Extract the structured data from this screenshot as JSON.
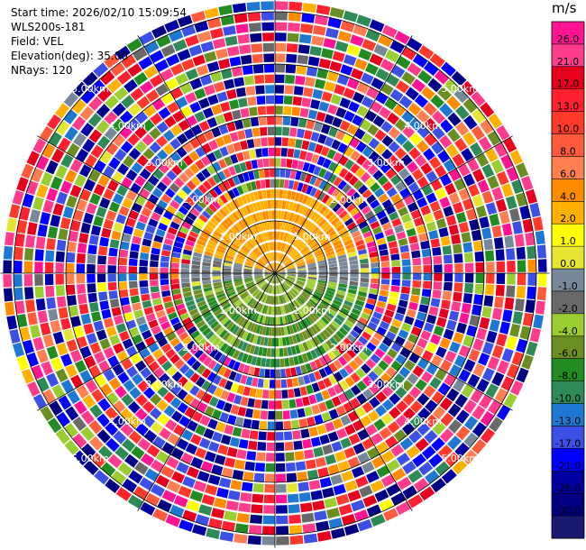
{
  "header": {
    "start_time": "Start time: 2026/02/10 15:09:54",
    "instrument": "WLS200s-181",
    "field": "Field: VEL",
    "elevation": "Elevation(deg): 35.00",
    "nrays": "NRays: 120"
  },
  "chart_data": {
    "type": "heatmap",
    "projection": "polar (PPI)",
    "range_rings_km": [
      1.0,
      2.0,
      3.0,
      4.0,
      5.0
    ],
    "ring_labels": [
      "1.00km",
      "2.00km",
      "3.00km",
      "4.00km",
      "5.00km"
    ],
    "n_rays": 120,
    "max_range_km": 5.2,
    "description_of_field": "Coherent velocity near center (< ~1.5 km): positive 1-6 m/s in north, negative -2 to -10 m/s in south; noise beyond",
    "colorbar": {
      "unit": "m/s",
      "ticks": [
        "26.0",
        "21.0",
        "17.0",
        "13.0",
        "10.0",
        "8.0",
        "6.0",
        "4.0",
        "2.0",
        "1.0",
        "0.0",
        "-1.0",
        "-2.0",
        "-4.0",
        "-6.0",
        "-8.0",
        "-10.0",
        "-13.0",
        "-17.0",
        "-21.0",
        "-26.0",
        "-30.0"
      ],
      "colors": [
        "#ff1493",
        "#ff3c8c",
        "#e6001e",
        "#ff2030",
        "#ff3a2a",
        "#ff5a3c",
        "#ff7f50",
        "#ff8c00",
        "#ffb000",
        "#ffff00",
        "#e6e632",
        "#778899",
        "#696969",
        "#9acd32",
        "#6b8e23",
        "#228b22",
        "#2e8b57",
        "#1e78d2",
        "#3c50e6",
        "#0000ff",
        "#0000a0",
        "#000080",
        "#191970"
      ]
    }
  }
}
